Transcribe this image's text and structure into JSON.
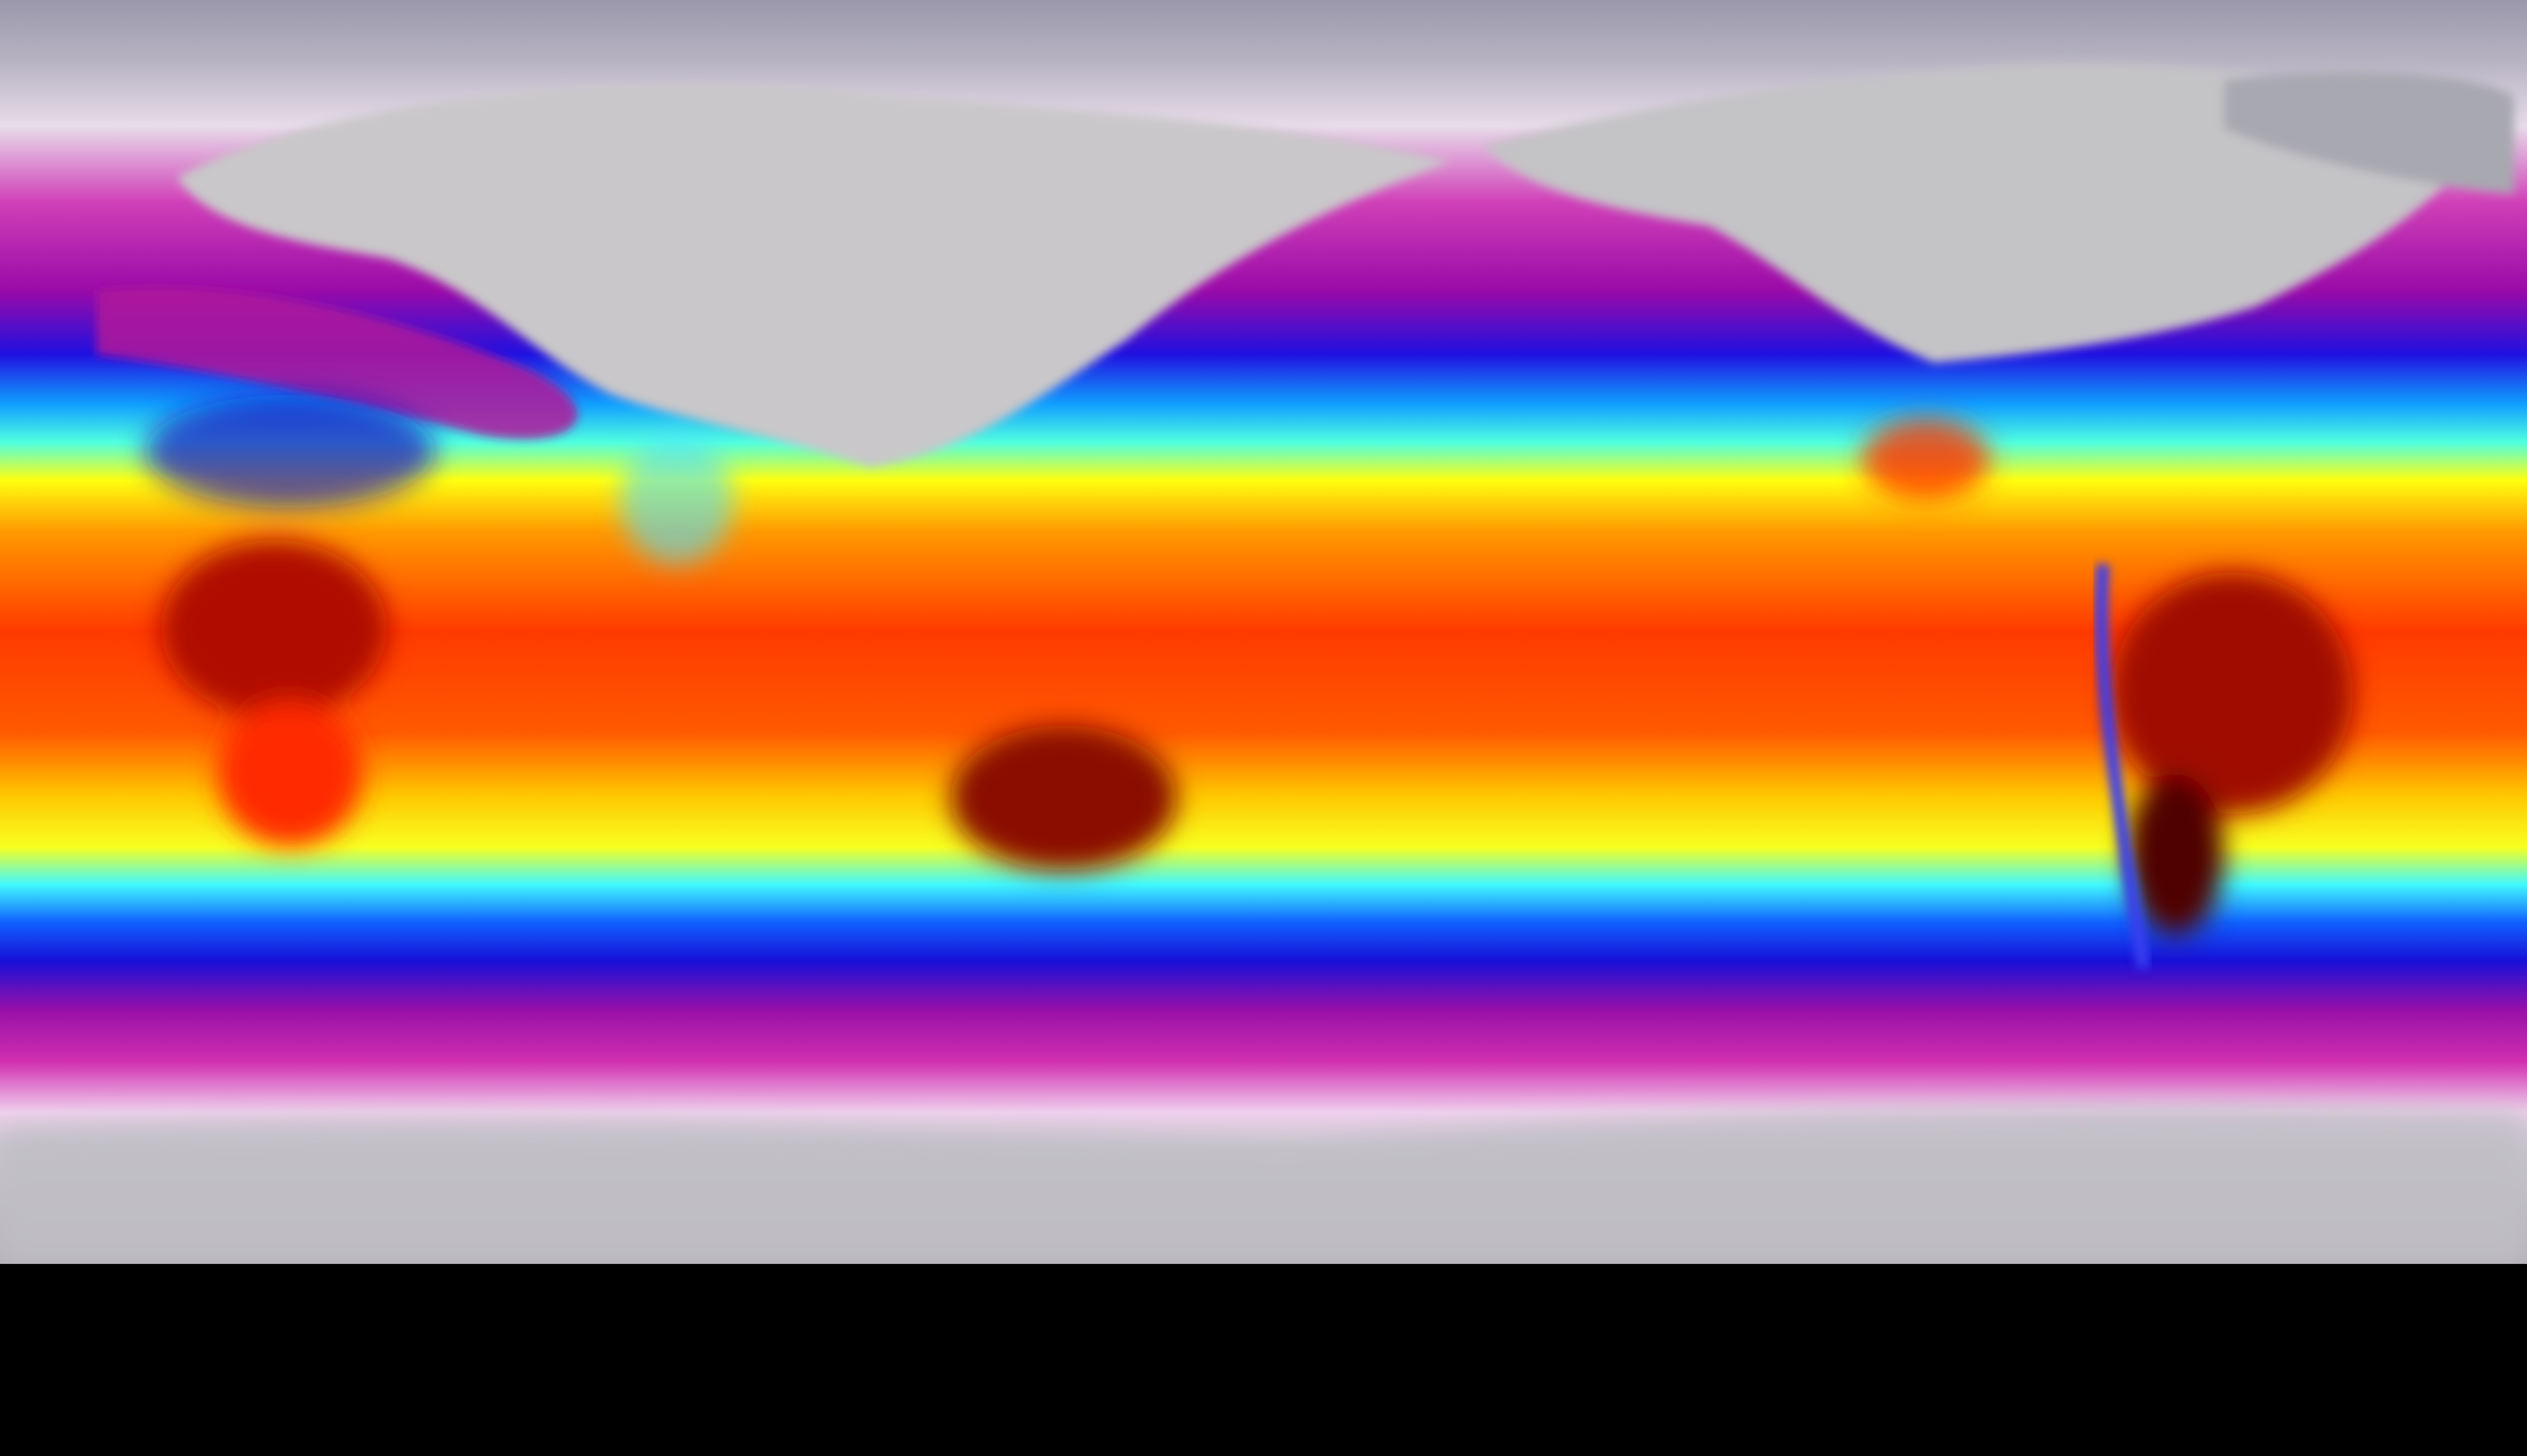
{
  "map": {
    "projection": "equirectangular",
    "variable": "temperature",
    "colormap": [
      "#8e8ca0",
      "#f2e6f2",
      "#d020b0",
      "#8a0aa0",
      "#1010e0",
      "#00a0ff",
      "#40ffff",
      "#ffff00",
      "#ff8000",
      "#ff2000",
      "#a00000",
      "#300000"
    ],
    "colors": {
      "polar_gray": "#a7a6b0",
      "land_cold": "#c8c8c8",
      "magenta": "#c0189c",
      "blue": "#1a10e6",
      "cyan": "#30e8ff",
      "yellow": "#ffff10",
      "orange": "#ff6a00",
      "red": "#ff2a00",
      "dark_red": "#7a0000"
    }
  }
}
